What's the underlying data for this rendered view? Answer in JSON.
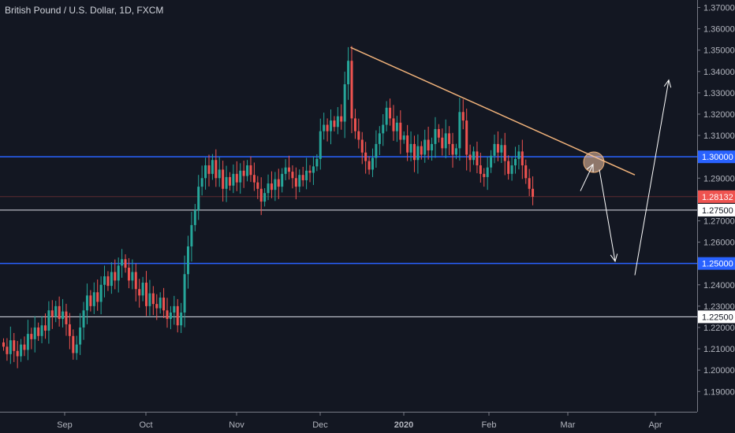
{
  "header": {
    "title": "British Pound / U.S. Dollar, 1D, FXCM"
  },
  "colors": {
    "background": "#131722",
    "up": "#26a69a",
    "down": "#ef5350",
    "support_blue": "#2962ff",
    "trendline": "#f0b27a",
    "marker": "#f5c6a5",
    "axis_border": "#787b86",
    "axis_text": "#b2b5be"
  },
  "chart_data": {
    "type": "candlestick",
    "instrument": "British Pound / U.S. Dollar",
    "interval": "1D",
    "source": "FXCM",
    "ylim": [
      1.1805,
      1.3735
    ],
    "y_ticks": [
      "1.37000",
      "1.36000",
      "1.35000",
      "1.34000",
      "1.33000",
      "1.32000",
      "1.31000",
      "1.29000",
      "1.28000",
      "1.27000",
      "1.26000",
      "1.24000",
      "1.23000",
      "1.22000",
      "1.21000",
      "1.20000",
      "1.19000"
    ],
    "x_labels": [
      {
        "label": "Sep",
        "bold": false
      },
      {
        "label": "Oct",
        "bold": false
      },
      {
        "label": "Nov",
        "bold": false
      },
      {
        "label": "Dec",
        "bold": false
      },
      {
        "label": "2020",
        "bold": true
      },
      {
        "label": "Feb",
        "bold": false
      },
      {
        "label": "Mar",
        "bold": false
      },
      {
        "label": "Apr",
        "bold": false
      }
    ],
    "horizontal_levels": [
      {
        "value": 1.3,
        "label": "1.30000",
        "style": "blue"
      },
      {
        "value": 1.275,
        "label": "1.27500",
        "style": "white"
      },
      {
        "value": 1.25,
        "label": "1.25000",
        "style": "blue"
      },
      {
        "value": 1.225,
        "label": "1.22500",
        "style": "white"
      }
    ],
    "last_price": {
      "value": 1.28132,
      "label": "1.28132"
    },
    "trendline": {
      "start_value": 1.3513,
      "end_value": 1.2915
    },
    "closes": [
      1.211,
      1.2075,
      1.214,
      1.209,
      1.2065,
      1.212,
      1.2095,
      1.217,
      1.2145,
      1.22,
      1.216,
      1.221,
      1.2185,
      1.228,
      1.225,
      1.23,
      1.224,
      1.2275,
      1.2215,
      1.216,
      1.208,
      1.212,
      1.22,
      1.228,
      1.235,
      1.23,
      1.2365,
      1.232,
      1.24,
      1.244,
      1.2395,
      1.246,
      1.242,
      1.249,
      1.252,
      1.248,
      1.242,
      1.246,
      1.238,
      1.235,
      1.241,
      1.23,
      1.236,
      1.231,
      1.229,
      1.234,
      1.228,
      1.224,
      1.227,
      1.23,
      1.221,
      1.227,
      1.245,
      1.258,
      1.268,
      1.275,
      1.286,
      1.29,
      1.296,
      1.292,
      1.2985,
      1.29,
      1.294,
      1.285,
      1.2905,
      1.2865,
      1.292,
      1.288,
      1.2935,
      1.291,
      1.296,
      1.2915,
      1.288,
      1.285,
      1.279,
      1.283,
      1.2875,
      1.2845,
      1.2895,
      1.286,
      1.292,
      1.295,
      1.293,
      1.29,
      1.286,
      1.2915,
      1.289,
      1.2935,
      1.2925,
      1.2955,
      1.299,
      1.312,
      1.315,
      1.312,
      1.317,
      1.314,
      1.319,
      1.3165,
      1.334,
      1.345,
      1.318,
      1.312,
      1.308,
      1.302,
      1.298,
      1.294,
      1.2995,
      1.306,
      1.311,
      1.315,
      1.323,
      1.318,
      1.312,
      1.316,
      1.308,
      1.31,
      1.302,
      1.306,
      1.2985,
      1.305,
      1.301,
      1.308,
      1.303,
      1.306,
      1.313,
      1.309,
      1.304,
      1.311,
      1.306,
      1.301,
      1.304,
      1.321,
      1.317,
      1.301,
      1.2985,
      1.3025,
      1.296,
      1.292,
      1.2905,
      1.295,
      1.3005,
      1.306,
      1.302,
      1.3055,
      1.298,
      1.292,
      1.296,
      1.299,
      1.3025,
      1.296,
      1.29,
      1.285,
      1.2813
    ]
  },
  "markers": {
    "circle_label": "",
    "arrows": [
      "up-short",
      "down",
      "up-long"
    ]
  }
}
